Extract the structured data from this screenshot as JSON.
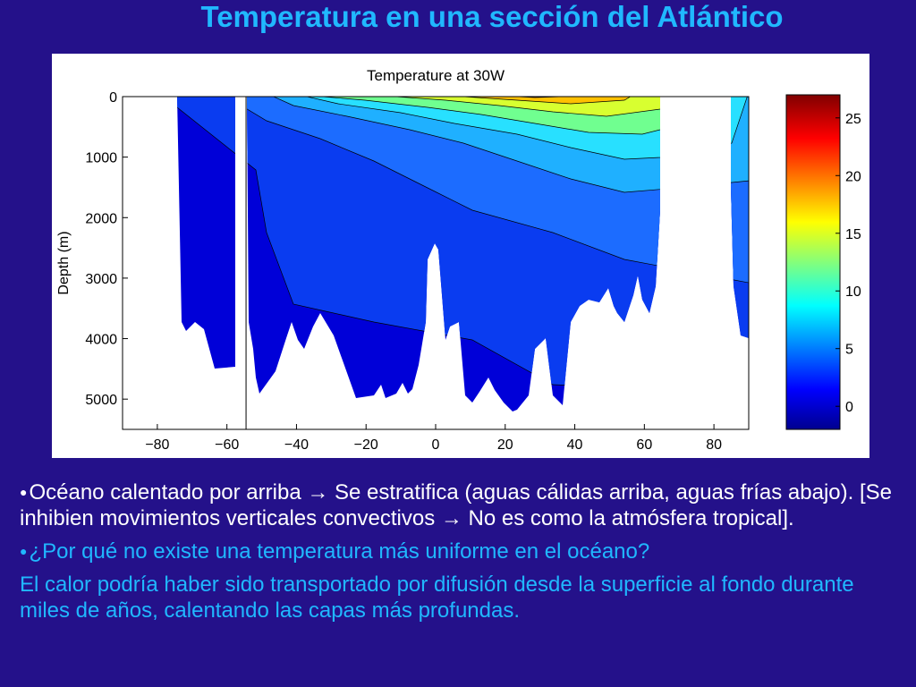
{
  "slide": {
    "title": "Temperatura en una sección del Atlántico"
  },
  "chart_data": {
    "type": "heatmap",
    "title": "Temperature at 30W",
    "xlabel": "",
    "ylabel": "Depth (m)",
    "xlim": [
      -90,
      90
    ],
    "ylim": [
      0,
      5500
    ],
    "y_inverted": true,
    "x_ticks": [
      "−80",
      "−60",
      "−40",
      "−20",
      "0",
      "20",
      "40",
      "60",
      "80"
    ],
    "y_ticks": [
      "0",
      "1000",
      "2000",
      "3000",
      "4000",
      "5000"
    ],
    "colorbar": {
      "range": [
        -2,
        27
      ],
      "ticks": [
        "25",
        "20",
        "15",
        "10",
        "5",
        "0"
      ]
    },
    "grid": false
  },
  "text": {
    "bullet1": "Océano calentado por arriba → Se estratifica (aguas cálidas arriba, aguas frías abajo). [Se inhibien movimientos verticales convectivos → No es como la atmósfera tropical].",
    "bullet2": "¿Por qué no existe una temperatura más uniforme en el océano?",
    "para3": "El calor podría haber sido transportado por difusión desde la superficie al fondo durante miles de años, calentando las capas más profundas."
  },
  "colors": {
    "background": "#24118a",
    "title": "#20b8ff",
    "highlight": "#20b8ff",
    "body_text": "#ffffff"
  }
}
